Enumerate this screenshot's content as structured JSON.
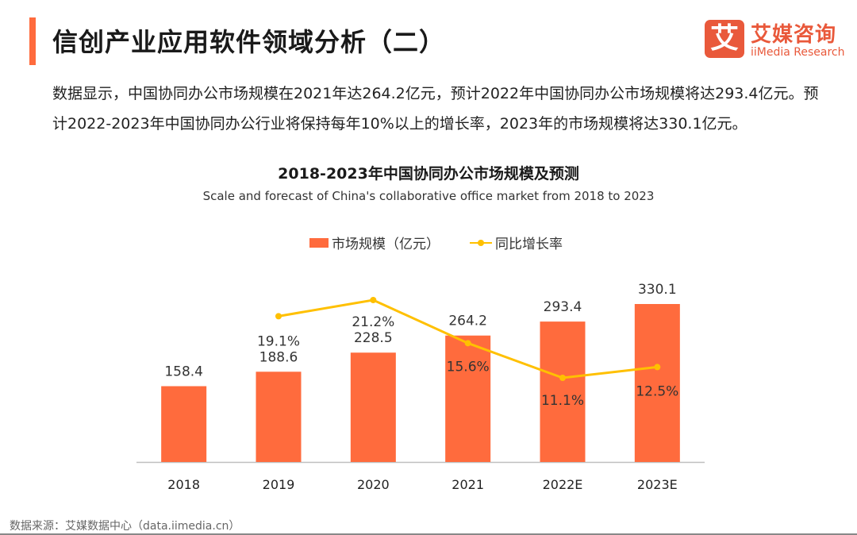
{
  "header": {
    "title": "信创产业应用软件领域分析（二）",
    "logo": {
      "icon": "ai-logo-mark",
      "mark_char": "艾",
      "name_cn": "艾媒咨询",
      "name_en": "iiMedia Research",
      "color": "#E9593B"
    }
  },
  "summary": "数据显示，中国协同办公市场规模在2021年达264.2亿元，预计2022年中国协同办公市场规模将达293.4亿元。预计2022-2023年中国协同办公行业将保持每年10%以上的增长率，2023年的市场规模将达330.1亿元。",
  "chart_data": {
    "type": "bar",
    "title": "2018-2023年中国协同办公市场规模及预测",
    "subtitle": "Scale and forecast of China's collaborative office market from 2018 to 2023",
    "categories": [
      "2018",
      "2019",
      "2020",
      "2021",
      "2022E",
      "2023E"
    ],
    "series": [
      {
        "name": "市场规模（亿元）",
        "type": "bar",
        "color": "#FF6B3D",
        "values": [
          158.4,
          188.6,
          228.5,
          264.2,
          293.4,
          330.1
        ],
        "labels": [
          "158.4",
          "188.6",
          "228.5",
          "264.2",
          "293.4",
          "330.1"
        ]
      },
      {
        "name": "同比增长率",
        "type": "line",
        "color": "#FFC000",
        "unit": "%",
        "values": [
          null,
          19.1,
          21.2,
          15.6,
          11.1,
          12.5
        ],
        "labels": [
          null,
          "19.1%",
          "21.2%",
          "15.6%",
          "11.1%",
          "12.5%"
        ]
      }
    ],
    "ylim": [
      0,
      340
    ],
    "y2lim": [
      -5,
      25
    ],
    "xlabel": "",
    "ylabel": "",
    "grid": false,
    "legend": "top-center"
  },
  "footer": {
    "source": "数据来源：艾媒数据中心（data.iimedia.cn）"
  }
}
